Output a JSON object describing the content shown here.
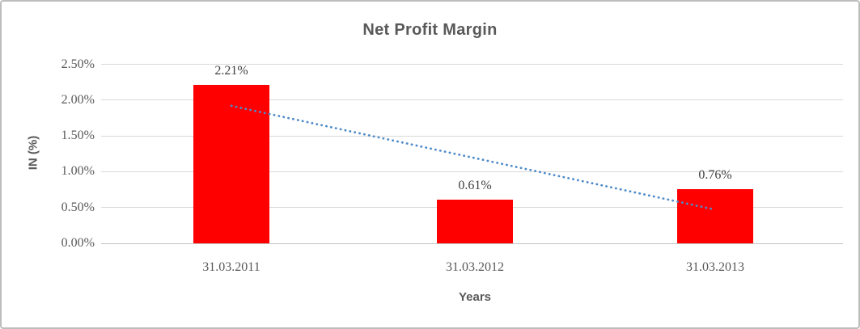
{
  "chart_data": {
    "type": "bar",
    "title": "Net Profit Margin",
    "xlabel": "Years",
    "ylabel": "IN (%)",
    "categories": [
      "31.03.2011",
      "31.03.2012",
      "31.03.2013"
    ],
    "series": [
      {
        "name": "Net Profit Margin",
        "color": "#FF0000",
        "values": [
          2.21,
          0.61,
          0.76
        ],
        "data_labels": [
          "2.21%",
          "0.61%",
          "0.76%"
        ]
      }
    ],
    "ylim": [
      0,
      2.5
    ],
    "yticks": [
      {
        "value": 2.5,
        "label": "2.50%"
      },
      {
        "value": 2.0,
        "label": "2.00%"
      },
      {
        "value": 1.5,
        "label": "1.50%"
      },
      {
        "value": 1.0,
        "label": "1.00%"
      },
      {
        "value": 0.5,
        "label": "0.50%"
      },
      {
        "value": 0.0,
        "label": "0.00%"
      }
    ],
    "grid": "horizontal",
    "legend": "none",
    "trendline": {
      "type": "linear",
      "style": "dotted",
      "color": "#4E8AC8",
      "start_value": 1.92,
      "end_value": 0.47
    }
  },
  "colors": {
    "bar": "#FF0000",
    "trendline": "#4E8AC8",
    "axis_text": "#595959",
    "data_label_text": "#3F3F3F",
    "gridline": "#D9D9D9",
    "axis_line": "#C4C4C4",
    "frame_border": "#BDBDBD",
    "background": "#FFFFFF"
  }
}
